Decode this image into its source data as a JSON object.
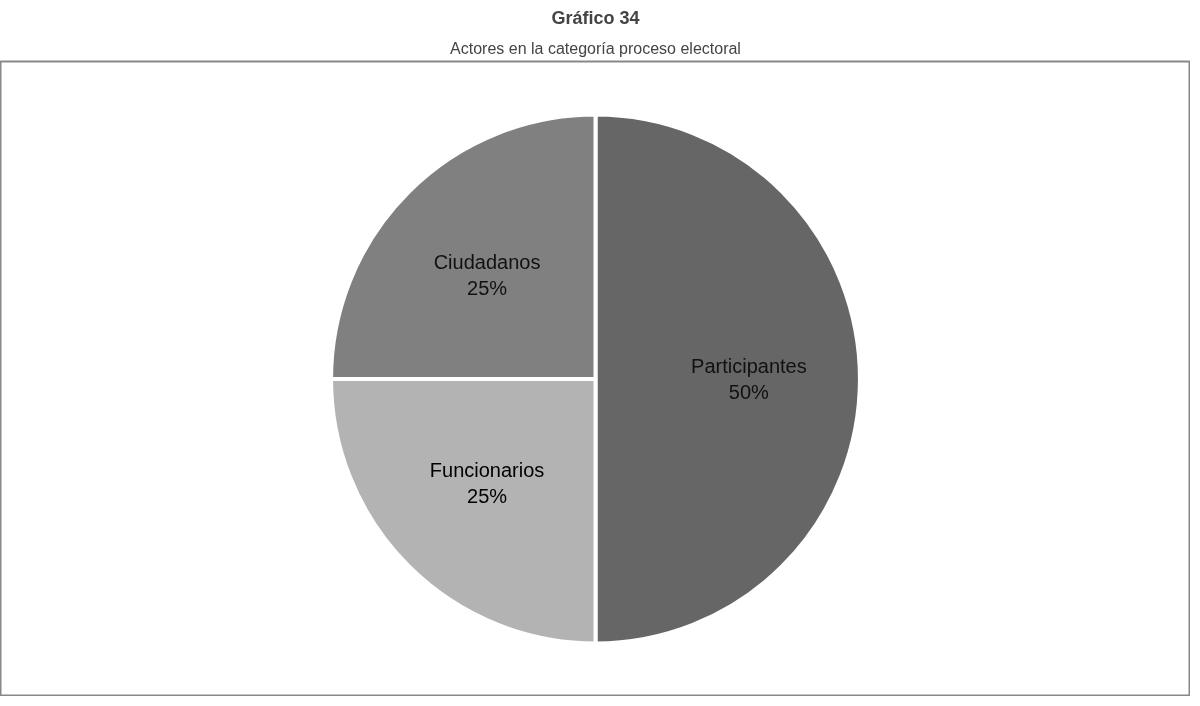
{
  "chart_data": {
    "type": "pie",
    "title": "Gráfico 34",
    "subtitle": "Actores en la categoría proceso electoral",
    "categories": [
      "Participantes",
      "Funcionarios",
      "Ciudadanos"
    ],
    "values": [
      50,
      25,
      25
    ],
    "colors": [
      "#666666",
      "#b3b3b3",
      "#808080"
    ],
    "value_labels": [
      "50%",
      "25%",
      "25%"
    ],
    "data_labels": true
  }
}
